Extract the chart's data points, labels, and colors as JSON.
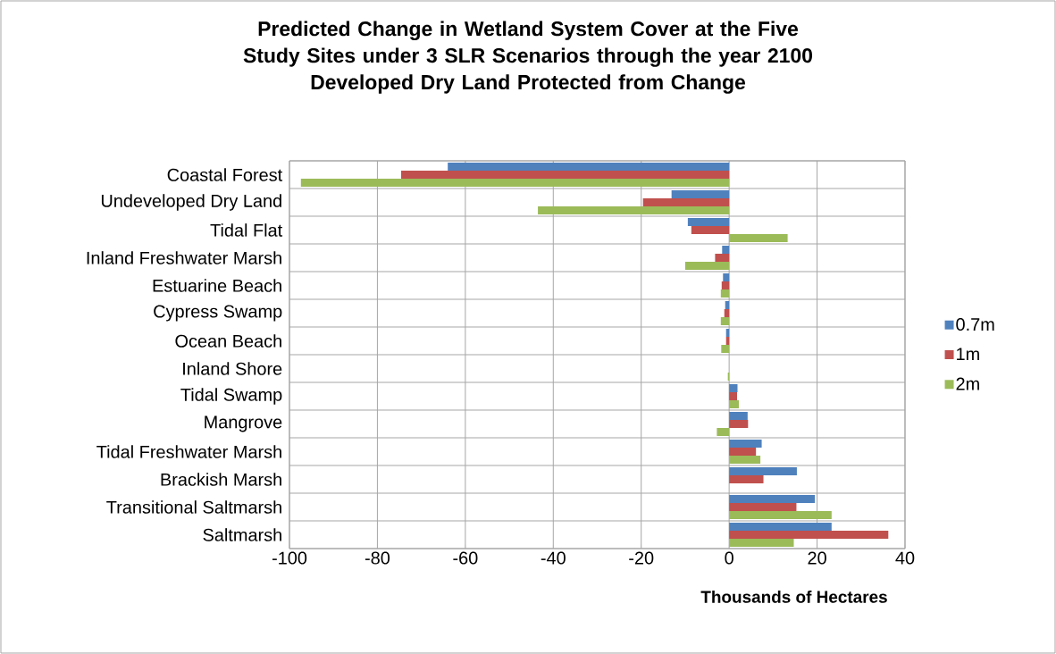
{
  "chart_data": {
    "type": "bar",
    "orientation": "horizontal",
    "title": "Predicted Change in Wetland System Cover at the Five Study Sites under 3 SLR Scenarios through the year 2100",
    "subtitle": "Developed Dry Land Protected from Change",
    "xlabel": "Thousands of Hectares",
    "categories": [
      "Coastal Forest",
      "Undeveloped Dry Land",
      "Tidal Flat",
      "Inland Freshwater Marsh",
      "Estuarine Beach",
      "Cypress Swamp",
      "Ocean Beach",
      "Inland Shore",
      "Tidal Swamp",
      "Mangrove",
      "Tidal Freshwater Marsh",
      "Brackish Marsh",
      "Transitional Saltmarsh",
      "Saltmarsh"
    ],
    "series": [
      {
        "name": "0.7m",
        "color": "#4f81bd",
        "values": [
          -64.0,
          -13.1,
          -9.4,
          -1.6,
          -1.4,
          -0.9,
          -0.7,
          0,
          1.9,
          4.2,
          7.4,
          15.4,
          19.5,
          23.3
        ]
      },
      {
        "name": "1m",
        "color": "#c0504d",
        "values": [
          -74.6,
          -19.6,
          -8.6,
          -3.2,
          -1.7,
          -1.1,
          -0.7,
          0,
          1.8,
          4.3,
          6.1,
          7.8,
          15.3,
          36.2
        ]
      },
      {
        "name": "2m",
        "color": "#9bbb59",
        "values": [
          -97.4,
          -43.5,
          13.3,
          -10.0,
          -1.9,
          -1.9,
          -1.8,
          -0.3,
          2.2,
          -2.8,
          7.1,
          0,
          23.3,
          14.7
        ]
      }
    ],
    "xlim": [
      -100,
      40
    ],
    "xticks": [
      -100,
      -80,
      -60,
      -40,
      -20,
      0,
      20,
      40
    ],
    "grid": true,
    "legend": "right"
  }
}
